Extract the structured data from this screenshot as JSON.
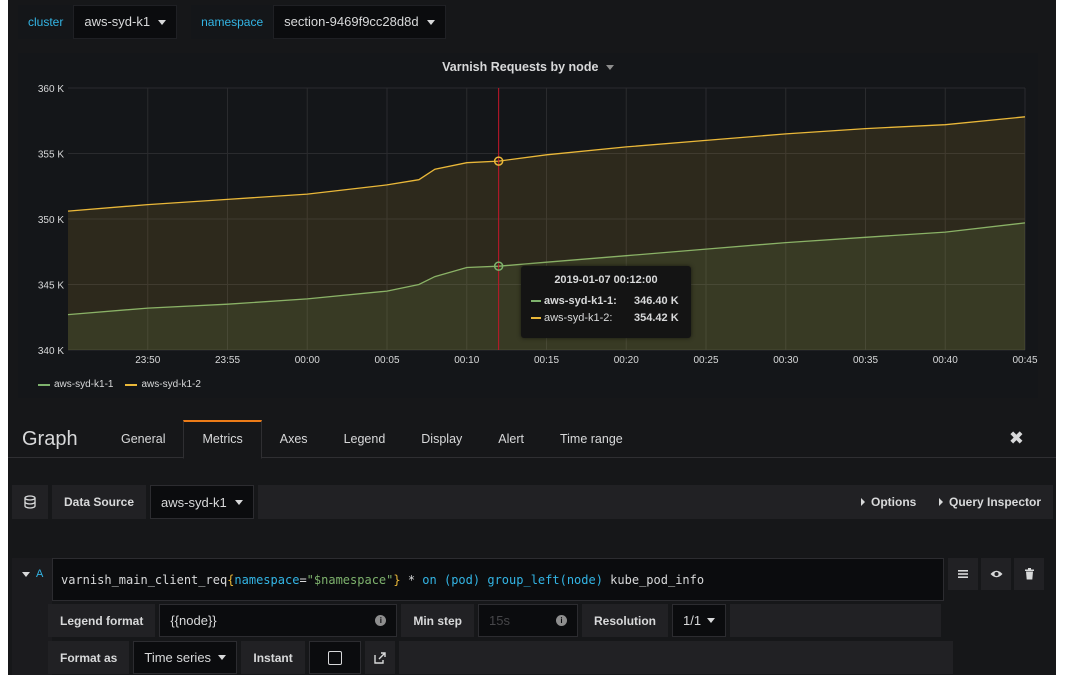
{
  "variables": [
    {
      "label": "cluster",
      "value": "aws-syd-k1"
    },
    {
      "label": "namespace",
      "value": "section-9469f9cc28d8d"
    }
  ],
  "panel": {
    "title": "Varnish Requests by node",
    "legend": [
      {
        "name": "aws-syd-k1-1",
        "color": "#7eb26d"
      },
      {
        "name": "aws-syd-k1-2",
        "color": "#eab839"
      }
    ],
    "tooltip": {
      "time": "2019-01-07 00:12:00",
      "rows": [
        {
          "name": "aws-syd-k1-1:",
          "value": "346.40 K",
          "color": "#7eb26d"
        },
        {
          "name": "aws-syd-k1-2:",
          "value": "354.42 K",
          "color": "#eab839"
        }
      ]
    }
  },
  "chart_data": {
    "type": "area",
    "title": "Varnish Requests by node",
    "x_ticks": [
      "23:50",
      "23:55",
      "00:00",
      "00:05",
      "00:10",
      "00:15",
      "00:20",
      "00:25",
      "00:30",
      "00:35",
      "00:40",
      "00:45"
    ],
    "y_ticks": [
      "340 K",
      "345 K",
      "350 K",
      "355 K",
      "360 K"
    ],
    "ylim": [
      340000,
      360000
    ],
    "x_range_minutes": [
      -15,
      45
    ],
    "series": [
      {
        "name": "aws-syd-k1-1",
        "color": "#7eb26d",
        "points": [
          [
            -15,
            342700
          ],
          [
            -10,
            343200
          ],
          [
            -5,
            343500
          ],
          [
            0,
            343900
          ],
          [
            5,
            344500
          ],
          [
            7,
            345000
          ],
          [
            8,
            345600
          ],
          [
            10,
            346300
          ],
          [
            12,
            346400
          ],
          [
            15,
            346700
          ],
          [
            20,
            347200
          ],
          [
            25,
            347700
          ],
          [
            30,
            348200
          ],
          [
            35,
            348600
          ],
          [
            40,
            349000
          ],
          [
            45,
            349700
          ]
        ]
      },
      {
        "name": "aws-syd-k1-2",
        "color": "#eab839",
        "points": [
          [
            -15,
            350600
          ],
          [
            -10,
            351100
          ],
          [
            -5,
            351500
          ],
          [
            0,
            351900
          ],
          [
            5,
            352600
          ],
          [
            7,
            353000
          ],
          [
            8,
            353800
          ],
          [
            10,
            354300
          ],
          [
            12,
            354420
          ],
          [
            15,
            354900
          ],
          [
            20,
            355500
          ],
          [
            25,
            356000
          ],
          [
            30,
            356500
          ],
          [
            35,
            356900
          ],
          [
            40,
            357200
          ],
          [
            45,
            357800
          ]
        ]
      }
    ],
    "crosshair_x": 12,
    "legend_position": "bottom-left",
    "grid": true
  },
  "editor": {
    "title": "Graph",
    "tabs": [
      "General",
      "Metrics",
      "Axes",
      "Legend",
      "Display",
      "Alert",
      "Time range"
    ],
    "active_tab": "Metrics",
    "close_symbol": "✖"
  },
  "datasource": {
    "label": "Data Source",
    "value": "aws-syd-k1",
    "options_label": "Options",
    "inspector_label": "Query Inspector"
  },
  "query": {
    "ref": "A",
    "tokens": {
      "metric": "varnish_main_client_req",
      "open_brace": "{",
      "label_name": "namespace",
      "eq": "=",
      "label_value": "\"$namespace\"",
      "close_brace": "}",
      "op": " * ",
      "on": "on",
      "pod_group": "(pod)",
      "group_left": "group_left",
      "node_group": "(node)",
      "rest": " kube_pod_info"
    },
    "legend_format_label": "Legend format",
    "legend_format_value": "{{node}}",
    "min_step_label": "Min step",
    "min_step_placeholder": "15s",
    "resolution_label": "Resolution",
    "resolution_value": "1/1",
    "format_as_label": "Format as",
    "format_as_value": "Time series",
    "instant_label": "Instant"
  }
}
